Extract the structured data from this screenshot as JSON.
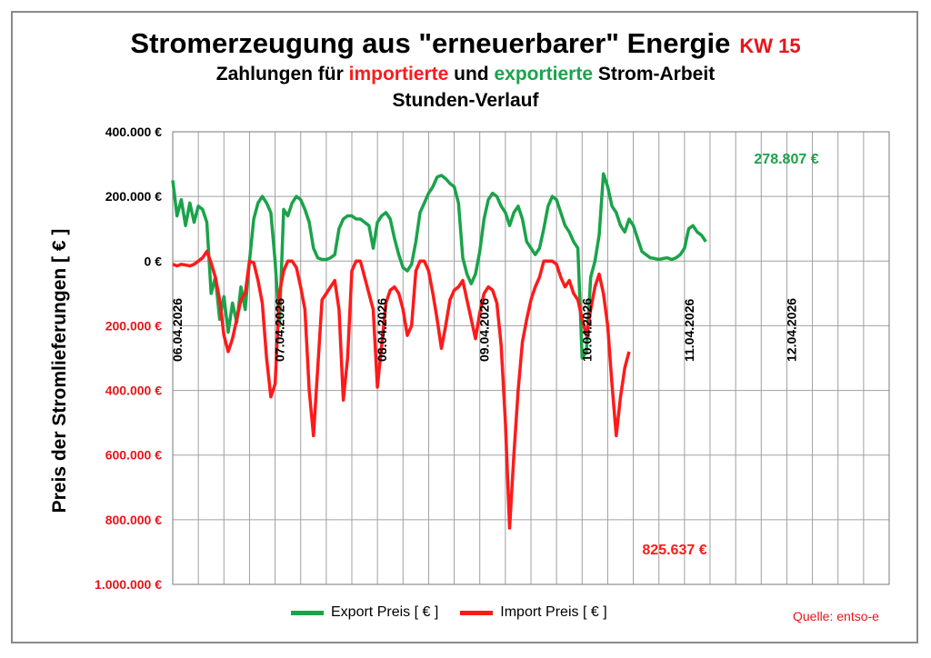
{
  "title": {
    "line1": "Stromerzeugung aus \"erneuerbarer\" Energie",
    "kw": "KW 15",
    "line2_part1": "Zahlungen für ",
    "line2_import": "importierte",
    "line2_part2": " und ",
    "line2_export": "exportierte",
    "line2_part3": " Strom-Arbeit",
    "line3": "Stunden-Verlauf"
  },
  "source": "Quelle: entso-e",
  "colors": {
    "export": "#1aa34a",
    "import": "#ff1a1a",
    "grid": "#a0a0a0",
    "red_text": "#e8141a"
  },
  "chart_data": {
    "type": "line",
    "ylabel": "Preis der Stromlieferungen [ € ]",
    "ylim": [
      -1000000,
      400000
    ],
    "y_ticks": [
      {
        "value": 400000,
        "label": "400.000 €"
      },
      {
        "value": 200000,
        "label": "200.000 €"
      },
      {
        "value": 0,
        "label": "0 €"
      },
      {
        "value": -200000,
        "label": "200.000 €"
      },
      {
        "value": -400000,
        "label": "400.000 €"
      },
      {
        "value": -600000,
        "label": "600.000 €"
      },
      {
        "value": -800000,
        "label": "800.000 €"
      },
      {
        "value": -1000000,
        "label": "1.000.000 €"
      }
    ],
    "x_range_hours": [
      0,
      168
    ],
    "x_ticks": [
      {
        "hour": 0,
        "label": "06.04.2026"
      },
      {
        "hour": 24,
        "label": "07.04.2026"
      },
      {
        "hour": 48,
        "label": "08.04.2026"
      },
      {
        "hour": 72,
        "label": "09.04.2026"
      },
      {
        "hour": 96,
        "label": "10.04.2026"
      },
      {
        "hour": 120,
        "label": "11.04.2026"
      },
      {
        "hour": 144,
        "label": "12.04.2026"
      }
    ],
    "series": [
      {
        "name": "Export Preis [ € ]",
        "color": "#1aa34a",
        "points": [
          [
            0,
            250000
          ],
          [
            1,
            140000
          ],
          [
            2,
            190000
          ],
          [
            3,
            110000
          ],
          [
            4,
            180000
          ],
          [
            5,
            120000
          ],
          [
            6,
            170000
          ],
          [
            7,
            160000
          ],
          [
            8,
            120000
          ],
          [
            9,
            -100000
          ],
          [
            10,
            -50000
          ],
          [
            11,
            -180000
          ],
          [
            12,
            -110000
          ],
          [
            13,
            -220000
          ],
          [
            14,
            -130000
          ],
          [
            15,
            -190000
          ],
          [
            16,
            -80000
          ],
          [
            17,
            -150000
          ],
          [
            18,
            0
          ],
          [
            19,
            130000
          ],
          [
            20,
            180000
          ],
          [
            21,
            200000
          ],
          [
            22,
            180000
          ],
          [
            23,
            150000
          ],
          [
            24,
            0
          ],
          [
            25,
            -200000
          ],
          [
            26,
            160000
          ],
          [
            27,
            140000
          ],
          [
            28,
            180000
          ],
          [
            29,
            200000
          ],
          [
            30,
            190000
          ],
          [
            31,
            160000
          ],
          [
            32,
            120000
          ],
          [
            33,
            40000
          ],
          [
            34,
            10000
          ],
          [
            35,
            5000
          ],
          [
            36,
            5000
          ],
          [
            37,
            10000
          ],
          [
            38,
            20000
          ],
          [
            39,
            100000
          ],
          [
            40,
            130000
          ],
          [
            41,
            140000
          ],
          [
            42,
            140000
          ],
          [
            43,
            130000
          ],
          [
            44,
            130000
          ],
          [
            45,
            120000
          ],
          [
            46,
            110000
          ],
          [
            47,
            40000
          ],
          [
            48,
            120000
          ],
          [
            49,
            140000
          ],
          [
            50,
            150000
          ],
          [
            51,
            130000
          ],
          [
            52,
            70000
          ],
          [
            53,
            20000
          ],
          [
            54,
            -20000
          ],
          [
            55,
            -30000
          ],
          [
            56,
            -10000
          ],
          [
            57,
            60000
          ],
          [
            58,
            150000
          ],
          [
            59,
            180000
          ],
          [
            60,
            210000
          ],
          [
            61,
            230000
          ],
          [
            62,
            260000
          ],
          [
            63,
            265000
          ],
          [
            64,
            255000
          ],
          [
            65,
            240000
          ],
          [
            66,
            230000
          ],
          [
            67,
            180000
          ],
          [
            68,
            10000
          ],
          [
            69,
            -40000
          ],
          [
            70,
            -70000
          ],
          [
            71,
            -40000
          ],
          [
            72,
            30000
          ],
          [
            73,
            130000
          ],
          [
            74,
            190000
          ],
          [
            75,
            210000
          ],
          [
            76,
            200000
          ],
          [
            77,
            170000
          ],
          [
            78,
            150000
          ],
          [
            79,
            110000
          ],
          [
            80,
            150000
          ],
          [
            81,
            170000
          ],
          [
            82,
            130000
          ],
          [
            83,
            60000
          ],
          [
            84,
            40000
          ],
          [
            85,
            20000
          ],
          [
            86,
            40000
          ],
          [
            87,
            100000
          ],
          [
            88,
            170000
          ],
          [
            89,
            200000
          ],
          [
            90,
            190000
          ],
          [
            91,
            150000
          ],
          [
            92,
            110000
          ],
          [
            93,
            90000
          ],
          [
            94,
            60000
          ],
          [
            95,
            40000
          ],
          [
            96,
            -300000
          ],
          [
            97,
            -280000
          ],
          [
            98,
            -50000
          ],
          [
            99,
            0
          ],
          [
            100,
            80000
          ],
          [
            101,
            270000
          ],
          [
            102,
            230000
          ],
          [
            103,
            170000
          ],
          [
            104,
            150000
          ],
          [
            105,
            110000
          ],
          [
            106,
            90000
          ],
          [
            107,
            130000
          ],
          [
            108,
            110000
          ],
          [
            109,
            70000
          ],
          [
            110,
            30000
          ],
          [
            111,
            20000
          ],
          [
            112,
            10000
          ],
          [
            113,
            8000
          ],
          [
            114,
            5000
          ],
          [
            115,
            8000
          ],
          [
            116,
            10000
          ],
          [
            117,
            5000
          ],
          [
            118,
            10000
          ],
          [
            119,
            20000
          ],
          [
            120,
            40000
          ],
          [
            121,
            100000
          ],
          [
            122,
            110000
          ],
          [
            123,
            90000
          ],
          [
            124,
            80000
          ],
          [
            125,
            60000
          ]
        ]
      },
      {
        "name": "Import Preis [ € ]",
        "color": "#ff1a1a",
        "points": [
          [
            0,
            -10000
          ],
          [
            1,
            -15000
          ],
          [
            2,
            -10000
          ],
          [
            3,
            -12000
          ],
          [
            4,
            -15000
          ],
          [
            5,
            -10000
          ],
          [
            6,
            0
          ],
          [
            7,
            10000
          ],
          [
            8,
            30000
          ],
          [
            9,
            -5000
          ],
          [
            10,
            -50000
          ],
          [
            11,
            -120000
          ],
          [
            12,
            -230000
          ],
          [
            13,
            -280000
          ],
          [
            14,
            -240000
          ],
          [
            15,
            -180000
          ],
          [
            16,
            -120000
          ],
          [
            17,
            -100000
          ],
          [
            18,
            0
          ],
          [
            19,
            -5000
          ],
          [
            20,
            -60000
          ],
          [
            21,
            -130000
          ],
          [
            22,
            -300000
          ],
          [
            23,
            -420000
          ],
          [
            24,
            -380000
          ],
          [
            25,
            -100000
          ],
          [
            26,
            -30000
          ],
          [
            27,
            0
          ],
          [
            28,
            0
          ],
          [
            29,
            -20000
          ],
          [
            30,
            -80000
          ],
          [
            31,
            -150000
          ],
          [
            32,
            -400000
          ],
          [
            33,
            -540000
          ],
          [
            34,
            -330000
          ],
          [
            35,
            -120000
          ],
          [
            36,
            -100000
          ],
          [
            37,
            -80000
          ],
          [
            38,
            -60000
          ],
          [
            39,
            -150000
          ],
          [
            40,
            -430000
          ],
          [
            41,
            -300000
          ],
          [
            42,
            -30000
          ],
          [
            43,
            0
          ],
          [
            44,
            0
          ],
          [
            45,
            -50000
          ],
          [
            46,
            -100000
          ],
          [
            47,
            -150000
          ],
          [
            48,
            -390000
          ],
          [
            49,
            -260000
          ],
          [
            50,
            -130000
          ],
          [
            51,
            -90000
          ],
          [
            52,
            -80000
          ],
          [
            53,
            -100000
          ],
          [
            54,
            -150000
          ],
          [
            55,
            -230000
          ],
          [
            56,
            -200000
          ],
          [
            57,
            -30000
          ],
          [
            58,
            0
          ],
          [
            59,
            0
          ],
          [
            60,
            -30000
          ],
          [
            61,
            -100000
          ],
          [
            62,
            -180000
          ],
          [
            63,
            -270000
          ],
          [
            64,
            -200000
          ],
          [
            65,
            -120000
          ],
          [
            66,
            -90000
          ],
          [
            67,
            -80000
          ],
          [
            68,
            -60000
          ],
          [
            69,
            -120000
          ],
          [
            70,
            -180000
          ],
          [
            71,
            -240000
          ],
          [
            72,
            -160000
          ],
          [
            73,
            -100000
          ],
          [
            74,
            -80000
          ],
          [
            75,
            -90000
          ],
          [
            76,
            -130000
          ],
          [
            77,
            -260000
          ],
          [
            78,
            -500000
          ],
          [
            79,
            -825637
          ],
          [
            80,
            -600000
          ],
          [
            81,
            -400000
          ],
          [
            82,
            -250000
          ],
          [
            83,
            -180000
          ],
          [
            84,
            -120000
          ],
          [
            85,
            -80000
          ],
          [
            86,
            -50000
          ],
          [
            87,
            0
          ],
          [
            88,
            0
          ],
          [
            89,
            0
          ],
          [
            90,
            -10000
          ],
          [
            91,
            -50000
          ],
          [
            92,
            -80000
          ],
          [
            93,
            -60000
          ],
          [
            94,
            -100000
          ],
          [
            95,
            -120000
          ],
          [
            96,
            -180000
          ],
          [
            97,
            -230000
          ],
          [
            98,
            -150000
          ],
          [
            99,
            -80000
          ],
          [
            100,
            -40000
          ],
          [
            101,
            -100000
          ],
          [
            102,
            -200000
          ],
          [
            103,
            -380000
          ],
          [
            104,
            -540000
          ],
          [
            105,
            -420000
          ],
          [
            106,
            -330000
          ],
          [
            107,
            -280000
          ]
        ]
      }
    ],
    "annotations": [
      {
        "text": "278.807 €",
        "series": "export",
        "hour": 0,
        "value": 278807
      },
      {
        "text": "825.637 €",
        "series": "import",
        "hour": 0,
        "value": -825637
      }
    ]
  }
}
